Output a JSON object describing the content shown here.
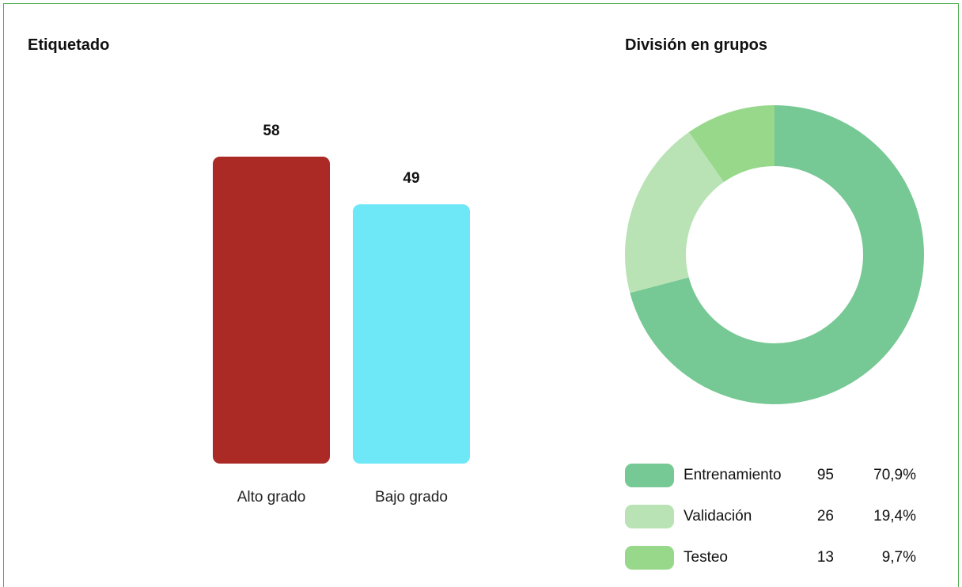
{
  "left_panel": {
    "title": "Etiquetado"
  },
  "right_panel": {
    "title": "División en grupos"
  },
  "chart_data": [
    {
      "type": "bar",
      "title": "Etiquetado",
      "categories": [
        "Alto grado",
        "Bajo grado"
      ],
      "values": [
        58,
        49
      ],
      "colors": [
        "#ab2a25",
        "#6ee7f6"
      ],
      "ylim": [
        0,
        58
      ],
      "grid": false
    },
    {
      "type": "pie",
      "variant": "donut",
      "title": "División en grupos",
      "legend_position": "bottom",
      "slices": [
        {
          "label": "Entrenamiento",
          "value": 95,
          "percent": "70,9%",
          "color": "#76c894"
        },
        {
          "label": "Validación",
          "value": 26,
          "percent": "19,4%",
          "color": "#b9e3b5"
        },
        {
          "label": "Testeo",
          "value": 13,
          "percent": "9,7%",
          "color": "#98d88a"
        }
      ]
    }
  ]
}
